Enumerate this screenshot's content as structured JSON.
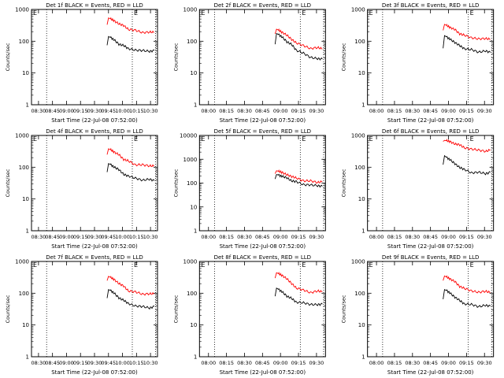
{
  "chart_data": [
    {
      "type": "line",
      "title": "Det 1f BLACK = Events, RED = LLD",
      "xlabel": "Start Time (22-Jul-08 07:52:00)",
      "ylabel": "Counts/sec",
      "yscale": "log",
      "ylim": [
        1,
        1000
      ],
      "xticks": [
        "08:30",
        "08:45",
        "09:00",
        "09:15",
        "09:30",
        "09:45",
        "10:00",
        "10:15",
        "10:30"
      ],
      "annotations": [
        "E",
        "E"
      ],
      "series": [
        {
          "name": "Events",
          "color": "#000000",
          "x": [
            0.0,
            0.03,
            0.08,
            0.15,
            0.25,
            0.35,
            0.45,
            0.6,
            0.75,
            0.9,
            1.0
          ],
          "values": [
            75,
            140,
            130,
            110,
            85,
            70,
            60,
            52,
            50,
            50,
            48
          ]
        },
        {
          "name": "LLD",
          "color": "#ff0000",
          "x": [
            0.0,
            0.03,
            0.08,
            0.15,
            0.25,
            0.35,
            0.45,
            0.6,
            0.75,
            0.9,
            1.0
          ],
          "values": [
            330,
            540,
            500,
            440,
            360,
            300,
            250,
            210,
            195,
            190,
            190
          ]
        }
      ]
    },
    {
      "type": "line",
      "title": "Det 2f BLACK = Events, RED = LLD",
      "xlabel": "Start Time (22-Jul-08 07:52:00)",
      "ylabel": "Counts/sec",
      "yscale": "log",
      "ylim": [
        1,
        1000
      ],
      "xticks": [
        "08:00",
        "08:15",
        "08:30",
        "08:45",
        "09:00",
        "09:15",
        "09:30"
      ],
      "annotations": [
        "E",
        "E"
      ],
      "series": [
        {
          "name": "Events",
          "color": "#000000",
          "x": [
            0.0,
            0.03,
            0.08,
            0.15,
            0.25,
            0.35,
            0.45,
            0.6,
            0.75,
            0.9,
            1.0
          ],
          "values": [
            80,
            175,
            160,
            135,
            100,
            75,
            55,
            40,
            32,
            28,
            27
          ]
        },
        {
          "name": "LLD",
          "color": "#ff0000",
          "x": [
            0.0,
            0.03,
            0.08,
            0.15,
            0.25,
            0.35,
            0.45,
            0.6,
            0.75,
            0.9,
            1.0
          ],
          "values": [
            170,
            240,
            220,
            190,
            150,
            115,
            90,
            70,
            62,
            60,
            60
          ]
        }
      ]
    },
    {
      "type": "line",
      "title": "Det 3f BLACK = Events, RED = LLD",
      "xlabel": "Start Time (22-Jul-08 07:52:00)",
      "ylabel": "Counts/sec",
      "yscale": "log",
      "ylim": [
        1,
        1000
      ],
      "xticks": [
        "08:00",
        "08:15",
        "08:30",
        "08:45",
        "09:00",
        "09:15",
        "09:30"
      ],
      "annotations": [
        "E",
        "E"
      ],
      "series": [
        {
          "name": "Events",
          "color": "#000000",
          "x": [
            0.0,
            0.03,
            0.08,
            0.15,
            0.25,
            0.35,
            0.45,
            0.6,
            0.75,
            0.9,
            1.0
          ],
          "values": [
            60,
            150,
            135,
            115,
            90,
            72,
            60,
            52,
            48,
            47,
            46
          ]
        },
        {
          "name": "LLD",
          "color": "#ff0000",
          "x": [
            0.0,
            0.03,
            0.08,
            0.15,
            0.25,
            0.35,
            0.45,
            0.6,
            0.75,
            0.9,
            1.0
          ],
          "values": [
            220,
            340,
            310,
            270,
            220,
            180,
            150,
            130,
            120,
            118,
            120
          ]
        }
      ]
    },
    {
      "type": "line",
      "title": "Det 4f BLACK = Events, RED = LLD",
      "xlabel": "Start Time (22-Jul-08 07:52:00)",
      "ylabel": "Counts/sec",
      "yscale": "log",
      "ylim": [
        1,
        1000
      ],
      "xticks": [
        "08:30",
        "08:45",
        "09:00",
        "09:15",
        "09:30",
        "09:45",
        "10:00",
        "10:15",
        "10:30"
      ],
      "annotations": [
        "E",
        "E"
      ],
      "series": [
        {
          "name": "Events",
          "color": "#000000",
          "x": [
            0.0,
            0.03,
            0.08,
            0.15,
            0.25,
            0.35,
            0.45,
            0.6,
            0.75,
            0.9,
            1.0
          ],
          "values": [
            70,
            130,
            120,
            100,
            80,
            62,
            52,
            45,
            40,
            40,
            40
          ]
        },
        {
          "name": "LLD",
          "color": "#ff0000",
          "x": [
            0.0,
            0.03,
            0.08,
            0.15,
            0.25,
            0.35,
            0.45,
            0.6,
            0.75,
            0.9,
            1.0
          ],
          "values": [
            250,
            380,
            350,
            300,
            240,
            185,
            150,
            125,
            115,
            112,
            110
          ]
        }
      ]
    },
    {
      "type": "line",
      "title": "Det 5f BLACK = Events, RED = LLD",
      "xlabel": "Start Time (22-Jul-08 07:52:00)",
      "ylabel": "Counts/sec",
      "yscale": "log",
      "ylim": [
        1,
        10000
      ],
      "xticks": [
        "08:00",
        "08:15",
        "08:30",
        "08:45",
        "09:00",
        "09:15",
        "09:30"
      ],
      "annotations": [
        "E",
        "E"
      ],
      "series": [
        {
          "name": "Events",
          "color": "#000000",
          "x": [
            0.0,
            0.03,
            0.08,
            0.15,
            0.25,
            0.35,
            0.45,
            0.6,
            0.75,
            0.9,
            1.0
          ],
          "values": [
            150,
            230,
            215,
            190,
            160,
            130,
            110,
            90,
            82,
            78,
            75
          ]
        },
        {
          "name": "LLD",
          "color": "#ff0000",
          "x": [
            0.0,
            0.03,
            0.08,
            0.15,
            0.25,
            0.35,
            0.45,
            0.6,
            0.75,
            0.9,
            1.0
          ],
          "values": [
            250,
            330,
            310,
            280,
            230,
            190,
            160,
            130,
            118,
            112,
            110
          ]
        }
      ]
    },
    {
      "type": "line",
      "title": "Det 6f BLACK = Events, RED = LLD",
      "xlabel": "Start Time (22-Jul-08 07:52:00)",
      "ylabel": "Counts/sec",
      "yscale": "log",
      "ylim": [
        1,
        1000
      ],
      "xticks": [
        "08:00",
        "08:15",
        "08:30",
        "08:45",
        "09:00",
        "09:15",
        "09:30"
      ],
      "annotations": [
        "E",
        "E"
      ],
      "series": [
        {
          "name": "Events",
          "color": "#000000",
          "x": [
            0.0,
            0.03,
            0.08,
            0.15,
            0.25,
            0.35,
            0.45,
            0.6,
            0.75,
            0.9,
            1.0
          ],
          "values": [
            120,
            230,
            200,
            170,
            130,
            100,
            82,
            70,
            66,
            66,
            67
          ]
        },
        {
          "name": "LLD",
          "color": "#ff0000",
          "x": [
            0.0,
            0.03,
            0.08,
            0.15,
            0.25,
            0.35,
            0.45,
            0.6,
            0.75,
            0.9,
            1.0
          ],
          "values": [
            650,
            700,
            680,
            640,
            570,
            490,
            420,
            370,
            340,
            330,
            330
          ]
        }
      ]
    },
    {
      "type": "line",
      "title": "Det 7f BLACK = Events, RED = LLD",
      "xlabel": "Start Time (22-Jul-08 07:52:00)",
      "ylabel": "Counts/sec",
      "yscale": "log",
      "ylim": [
        1,
        1000
      ],
      "xticks": [
        "08:30",
        "08:45",
        "09:00",
        "09:15",
        "09:30",
        "09:45",
        "10:00",
        "10:15",
        "10:30"
      ],
      "annotations": [
        "E",
        "E"
      ],
      "series": [
        {
          "name": "Events",
          "color": "#000000",
          "x": [
            0.0,
            0.03,
            0.08,
            0.15,
            0.25,
            0.35,
            0.45,
            0.6,
            0.75,
            0.9,
            1.0
          ],
          "values": [
            70,
            130,
            120,
            100,
            75,
            58,
            48,
            40,
            37,
            36,
            36
          ]
        },
        {
          "name": "LLD",
          "color": "#ff0000",
          "x": [
            0.0,
            0.03,
            0.08,
            0.15,
            0.25,
            0.35,
            0.45,
            0.6,
            0.75,
            0.9,
            1.0
          ],
          "values": [
            250,
            340,
            310,
            270,
            210,
            160,
            125,
            105,
            96,
            95,
            95
          ]
        }
      ]
    },
    {
      "type": "line",
      "title": "Det 8f BLACK = Events, RED = LLD",
      "xlabel": "Start Time (22-Jul-08 07:52:00)",
      "ylabel": "Counts/sec",
      "yscale": "log",
      "ylim": [
        1,
        1000
      ],
      "xticks": [
        "08:00",
        "08:15",
        "08:30",
        "08:45",
        "09:00",
        "09:15",
        "09:30"
      ],
      "annotations": [
        "E",
        "E"
      ],
      "series": [
        {
          "name": "Events",
          "color": "#000000",
          "x": [
            0.0,
            0.03,
            0.08,
            0.15,
            0.25,
            0.35,
            0.45,
            0.6,
            0.75,
            0.9,
            1.0
          ],
          "values": [
            80,
            145,
            130,
            110,
            85,
            65,
            55,
            48,
            45,
            44,
            44
          ]
        },
        {
          "name": "LLD",
          "color": "#ff0000",
          "x": [
            0.0,
            0.03,
            0.08,
            0.15,
            0.25,
            0.35,
            0.45,
            0.6,
            0.75,
            0.9,
            1.0
          ],
          "values": [
            300,
            440,
            410,
            360,
            280,
            200,
            150,
            120,
            110,
            112,
            115
          ]
        }
      ]
    },
    {
      "type": "line",
      "title": "Det 9f BLACK = Events, RED = LLD",
      "xlabel": "Start Time (22-Jul-08 07:52:00)",
      "ylabel": "Counts/sec",
      "yscale": "log",
      "ylim": [
        1,
        1000
      ],
      "xticks": [
        "08:00",
        "08:15",
        "08:30",
        "08:45",
        "09:00",
        "09:15",
        "09:30"
      ],
      "annotations": [
        "E",
        "E"
      ],
      "series": [
        {
          "name": "Events",
          "color": "#000000",
          "x": [
            0.0,
            0.03,
            0.08,
            0.15,
            0.25,
            0.35,
            0.45,
            0.6,
            0.75,
            0.9,
            1.0
          ],
          "values": [
            65,
            130,
            120,
            100,
            75,
            58,
            48,
            42,
            40,
            40,
            40
          ]
        },
        {
          "name": "LLD",
          "color": "#ff0000",
          "x": [
            0.0,
            0.03,
            0.08,
            0.15,
            0.25,
            0.35,
            0.45,
            0.6,
            0.75,
            0.9,
            1.0
          ],
          "values": [
            250,
            350,
            320,
            280,
            220,
            170,
            140,
            118,
            110,
            110,
            112
          ]
        }
      ]
    }
  ]
}
